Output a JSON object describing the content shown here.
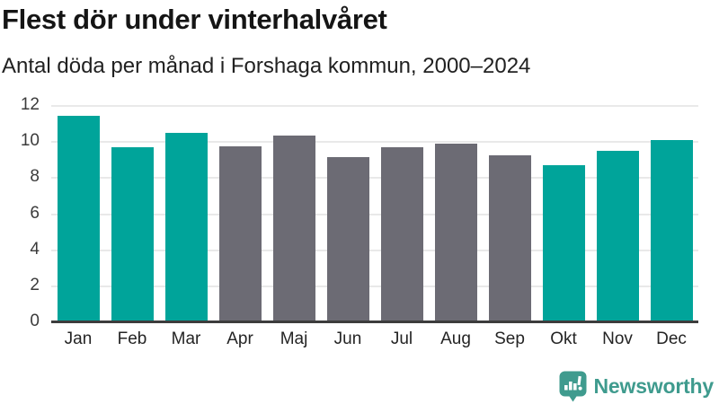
{
  "header": {
    "title": "Flest dör under vinterhalvåret",
    "subtitle": "Antal döda per månad i Forshaga kommun, 2000–2024"
  },
  "chart_data": {
    "type": "bar",
    "title": "Flest dör under vinterhalvåret",
    "subtitle": "Antal döda per månad i Forshaga kommun, 2000–2024",
    "categories": [
      "Jan",
      "Feb",
      "Mar",
      "Apr",
      "Maj",
      "Jun",
      "Jul",
      "Aug",
      "Sep",
      "Okt",
      "Nov",
      "Dec"
    ],
    "values": [
      11.4,
      9.65,
      10.45,
      9.7,
      10.3,
      9.1,
      9.65,
      9.85,
      9.2,
      8.65,
      9.45,
      10.05
    ],
    "highlighted": [
      true,
      true,
      true,
      false,
      false,
      false,
      false,
      false,
      false,
      true,
      true,
      true
    ],
    "xlabel": "",
    "ylabel": "",
    "ylim": [
      0,
      12
    ],
    "yticks": [
      0,
      2,
      4,
      6,
      8,
      10,
      12
    ],
    "grid": true,
    "legend": "none",
    "colors": {
      "highlight": "#00a49a",
      "neutral": "#6c6b74",
      "gridline": "#e9e9e9",
      "axis_line": "#3c3c3c",
      "tick_label": "#3b3b3b"
    }
  },
  "footer": {
    "brand": "Newsworthy",
    "brand_color": "#3f9b8e",
    "logo_icon": "bar-chart-speech-bubble-icon"
  }
}
